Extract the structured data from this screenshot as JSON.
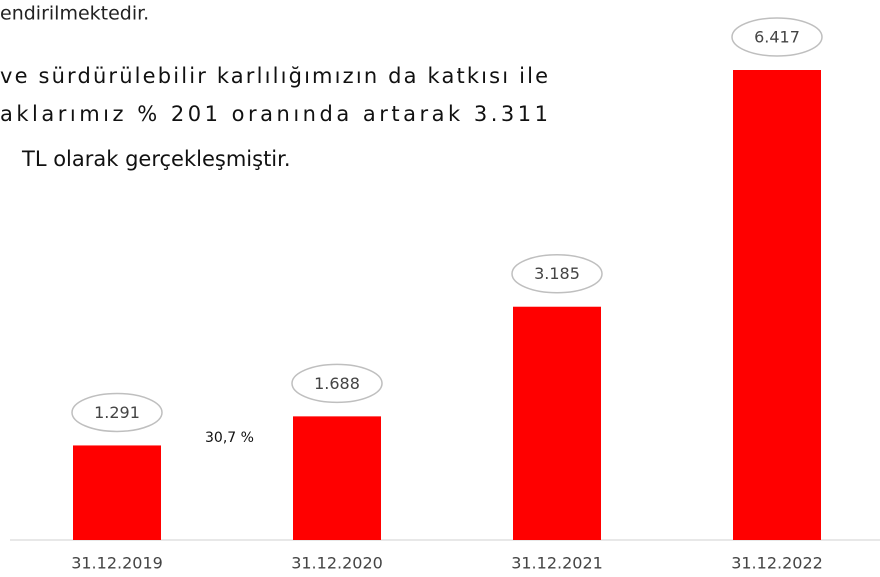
{
  "document": {
    "lines": [
      "endirilmektedir.",
      "ve sürdürülebilir karlılığımızın da katkısı ile",
      "aklarımız % 201 oranında artarak 3.311",
      "TL olarak gerçekleşmiştir."
    ]
  },
  "chart_data": {
    "type": "bar",
    "categories": [
      "31.12.2019",
      "31.12.2020",
      "31.12.2021",
      "31.12.2022"
    ],
    "values": [
      1291,
      1688,
      3185,
      6417
    ],
    "value_labels": [
      "1.291",
      "1.688",
      "3.185",
      "6.417"
    ],
    "color": "#ff0000",
    "annotation": "30,7 %"
  }
}
